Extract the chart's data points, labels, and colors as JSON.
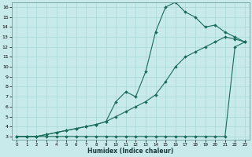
{
  "xlabel": "Humidex (Indice chaleur)",
  "bg_color": "#c8eaea",
  "line_color": "#1a6b5a",
  "grid_color": "#a8d8d8",
  "xlim_min": -0.5,
  "xlim_max": 23.5,
  "ylim_min": 2.7,
  "ylim_max": 16.5,
  "line1_x": [
    0,
    1,
    2,
    3,
    4,
    5,
    6,
    7,
    8,
    9,
    10,
    11,
    12,
    13,
    14,
    15,
    16,
    17,
    18,
    19,
    20,
    21,
    22,
    23
  ],
  "line1_y": [
    3,
    3,
    3,
    3,
    3,
    3,
    3,
    3,
    3,
    3,
    3,
    3,
    3,
    3,
    3,
    3,
    3,
    3,
    3,
    3,
    3,
    3,
    12,
    12.5
  ],
  "line2_x": [
    0,
    1,
    2,
    3,
    4,
    5,
    6,
    7,
    8,
    9,
    10,
    11,
    12,
    13,
    14,
    15,
    16,
    17,
    18,
    19,
    20,
    21,
    22,
    23
  ],
  "line2_y": [
    3,
    3,
    3,
    3.2,
    3.4,
    3.6,
    3.8,
    4.0,
    4.2,
    4.5,
    6.5,
    7.5,
    7.0,
    9.5,
    13.5,
    16.0,
    16.5,
    15.5,
    15.0,
    14.0,
    14.2,
    13.5,
    13.0,
    12.5
  ],
  "line3_x": [
    0,
    1,
    2,
    3,
    4,
    5,
    6,
    7,
    8,
    9,
    10,
    11,
    12,
    13,
    14,
    15,
    16,
    17,
    18,
    19,
    20,
    21,
    22,
    23
  ],
  "line3_y": [
    3,
    3,
    3,
    3.2,
    3.4,
    3.6,
    3.8,
    4.0,
    4.2,
    4.5,
    5.0,
    5.5,
    6.0,
    6.5,
    7.2,
    8.5,
    10.0,
    11.0,
    11.5,
    12.0,
    12.5,
    13.0,
    12.8,
    12.5
  ]
}
